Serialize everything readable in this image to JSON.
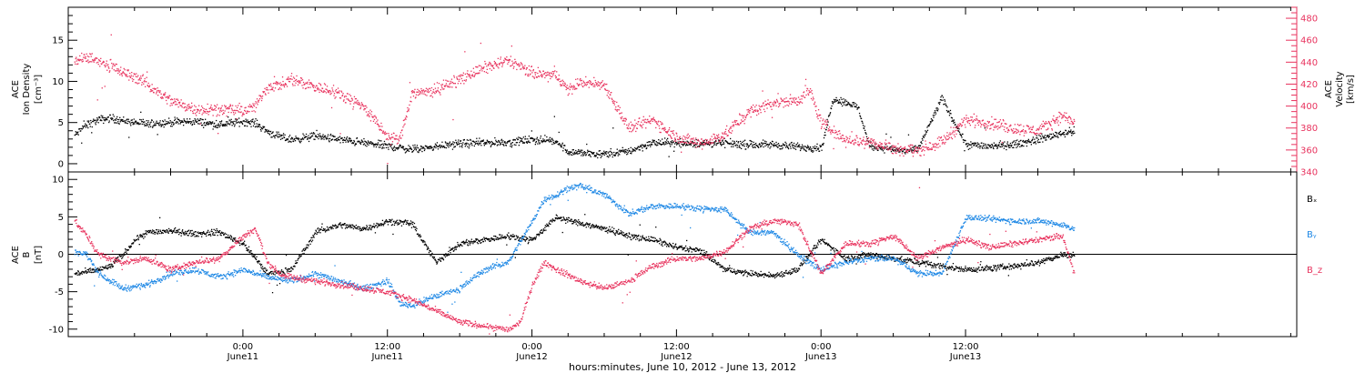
{
  "colors": {
    "black": "#000000",
    "magenta": "#e8335e",
    "blue": "#1e88e5"
  },
  "x_axis": {
    "title": "hours:minutes, June 10, 2012 - June 13, 2012",
    "range_hours": [
      -14.5,
      87.5
    ],
    "ticks": [
      {
        "hour": 0,
        "time": "0:00",
        "day": "June11"
      },
      {
        "hour": 12,
        "time": "12:00",
        "day": "June11"
      },
      {
        "hour": 24,
        "time": "0:00",
        "day": "June12"
      },
      {
        "hour": 36,
        "time": "12:00",
        "day": "June12"
      },
      {
        "hour": 48,
        "time": "0:00",
        "day": "June13"
      },
      {
        "hour": 60,
        "time": "12:00",
        "day": "June13"
      }
    ]
  },
  "chart_data": [
    {
      "type": "scatter",
      "panel": "top",
      "ylabel_left": [
        "ACE",
        "Ion Density",
        "[cm⁻³]"
      ],
      "ylabel_right": [
        "ACE",
        "Velocity",
        "[km/s]"
      ],
      "ylim_left": [
        -1,
        19
      ],
      "ylim_right": [
        340,
        490
      ],
      "yticks_left": [
        0,
        5,
        10,
        15
      ],
      "yticks_right": [
        340,
        360,
        380,
        400,
        420,
        440,
        460,
        480
      ],
      "series": [
        {
          "name": "",
          "axis": "left",
          "color": "#000000",
          "knots_hours": [
            -14,
            -13,
            -12,
            -11,
            -10,
            -8,
            -6,
            -4,
            -2,
            0,
            1,
            2,
            3,
            4,
            6,
            8,
            10,
            12,
            14,
            16,
            18,
            20,
            22,
            24,
            26,
            27,
            28,
            30,
            32,
            34,
            36,
            38,
            40,
            42,
            44,
            46,
            48,
            49,
            50,
            51,
            52,
            53,
            54,
            55,
            56,
            58,
            60,
            62,
            64,
            66,
            68,
            69
          ],
          "values": [
            3.5,
            4.8,
            5.4,
            5.6,
            5.3,
            4.9,
            5.1,
            5.2,
            4.8,
            5.2,
            5.0,
            4.0,
            3.3,
            3.0,
            3.4,
            3.0,
            2.6,
            2.2,
            1.8,
            2.2,
            2.5,
            2.6,
            2.7,
            3.0,
            2.8,
            1.5,
            1.4,
            1.2,
            1.6,
            2.6,
            2.6,
            2.5,
            2.6,
            2.3,
            2.4,
            2.1,
            2.0,
            8.0,
            7.5,
            7.0,
            2.2,
            2.0,
            1.8,
            1.6,
            1.8,
            8.0,
            2.4,
            2.2,
            2.4,
            3.0,
            3.8,
            4.0
          ]
        },
        {
          "name": "",
          "axis": "right",
          "color": "#e8335e",
          "knots_hours": [
            -14,
            -13,
            -12,
            -11,
            -10,
            -9,
            -8,
            -6,
            -4,
            -2,
            0,
            1,
            2,
            3,
            4,
            6,
            8,
            10,
            12,
            13,
            14,
            16,
            18,
            20,
            22,
            24,
            26,
            27,
            28,
            30,
            32,
            34,
            36,
            38,
            40,
            42,
            44,
            46,
            47,
            48,
            50,
            52,
            54,
            56,
            58,
            60,
            62,
            64,
            66,
            68,
            69
          ],
          "values": [
            440,
            445,
            441,
            438,
            430,
            428,
            420,
            405,
            398,
            398,
            396,
            400,
            418,
            420,
            425,
            418,
            412,
            400,
            372,
            370,
            412,
            415,
            425,
            435,
            442,
            430,
            428,
            415,
            422,
            420,
            380,
            388,
            372,
            366,
            375,
            395,
            404,
            405,
            415,
            385,
            370,
            368,
            362,
            360,
            368,
            388,
            385,
            380,
            378,
            392,
            385
          ]
        }
      ]
    },
    {
      "type": "scatter",
      "panel": "bottom",
      "ylabel_left": [
        "ACE",
        "B",
        "[nT]"
      ],
      "ylim": [
        -11,
        11
      ],
      "yticks": [
        -10,
        -5,
        0,
        5,
        10
      ],
      "legend": [
        "Bₓ",
        "Bᵧ",
        "B_z"
      ],
      "series": [
        {
          "name": "Bₓ",
          "color": "#000000",
          "knots_hours": [
            -14,
            -13,
            -12,
            -11,
            -10,
            -9,
            -8,
            -6,
            -4,
            -2,
            0,
            2,
            4,
            6,
            8,
            10,
            12,
            14,
            16,
            18,
            20,
            22,
            24,
            26,
            28,
            30,
            32,
            34,
            36,
            38,
            40,
            42,
            44,
            46,
            48,
            50,
            52,
            54,
            56,
            58,
            60,
            62,
            64,
            66,
            68,
            69
          ],
          "values": [
            -2.5,
            -2.3,
            -2.0,
            -1.5,
            0.0,
            2.0,
            3.0,
            3.2,
            2.8,
            3.0,
            1.5,
            -2.5,
            -2.0,
            3.0,
            4.0,
            3.5,
            4.5,
            4.2,
            -1.0,
            1.5,
            2.0,
            2.5,
            2.0,
            5.0,
            4.2,
            3.5,
            2.5,
            2.0,
            1.0,
            0.5,
            -2.0,
            -2.5,
            -2.8,
            -2.0,
            2.0,
            -0.5,
            0.0,
            -0.5,
            -1.0,
            -1.5,
            -2.0,
            -1.8,
            -1.5,
            -1.0,
            0.0,
            0.0
          ]
        },
        {
          "name": "Bᵧ",
          "color": "#1e88e5",
          "knots_hours": [
            -14,
            -13,
            -12,
            -11,
            -10,
            -8,
            -6,
            -4,
            -2,
            0,
            2,
            4,
            6,
            8,
            10,
            12,
            13,
            14,
            16,
            18,
            20,
            22,
            24,
            25,
            26,
            27,
            28,
            30,
            32,
            33,
            34,
            36,
            38,
            40,
            42,
            44,
            46,
            48,
            50,
            52,
            54,
            56,
            58,
            60,
            62,
            64,
            66,
            68,
            69
          ],
          "values": [
            0.5,
            0.0,
            -2.5,
            -3.5,
            -4.5,
            -4.0,
            -2.5,
            -2.0,
            -3.0,
            -2.0,
            -3.0,
            -3.5,
            -2.5,
            -3.5,
            -4.5,
            -3.5,
            -6.5,
            -6.8,
            -5.5,
            -4.5,
            -2.0,
            -1.0,
            4.5,
            7.5,
            8.0,
            9.0,
            9.2,
            8.0,
            5.5,
            6.0,
            6.5,
            6.5,
            6.2,
            6.0,
            3.0,
            3.0,
            0.0,
            -2.0,
            -1.0,
            -0.5,
            -0.5,
            -2.5,
            -2.5,
            5.0,
            4.8,
            4.5,
            4.5,
            4.0,
            3.5
          ]
        },
        {
          "name": "B_z",
          "color": "#e8335e",
          "knots_hours": [
            -14,
            -13,
            -12,
            -11,
            -10,
            -8,
            -6,
            -4,
            -2,
            0,
            1,
            2,
            3,
            4,
            6,
            8,
            10,
            12,
            14,
            16,
            18,
            20,
            22,
            23,
            24,
            25,
            26,
            28,
            30,
            32,
            34,
            36,
            38,
            40,
            42,
            44,
            46,
            48,
            50,
            52,
            54,
            56,
            58,
            60,
            62,
            64,
            66,
            68,
            69
          ],
          "values": [
            4.5,
            2.5,
            0.0,
            -0.5,
            -1.0,
            -0.5,
            -2.0,
            -1.0,
            -0.5,
            2.5,
            3.5,
            -1.0,
            -2.5,
            -3.0,
            -3.5,
            -4.0,
            -4.5,
            -5.0,
            -6.0,
            -7.5,
            -9.0,
            -9.5,
            -10.0,
            -9.0,
            -4.0,
            -1.0,
            -2.0,
            -3.5,
            -4.5,
            -3.5,
            -1.5,
            -0.5,
            -0.5,
            0.5,
            3.5,
            4.5,
            4.2,
            -2.5,
            1.5,
            1.5,
            2.5,
            -0.5,
            1.0,
            2.0,
            1.0,
            1.5,
            2.0,
            2.5,
            -2.5
          ]
        }
      ]
    }
  ]
}
